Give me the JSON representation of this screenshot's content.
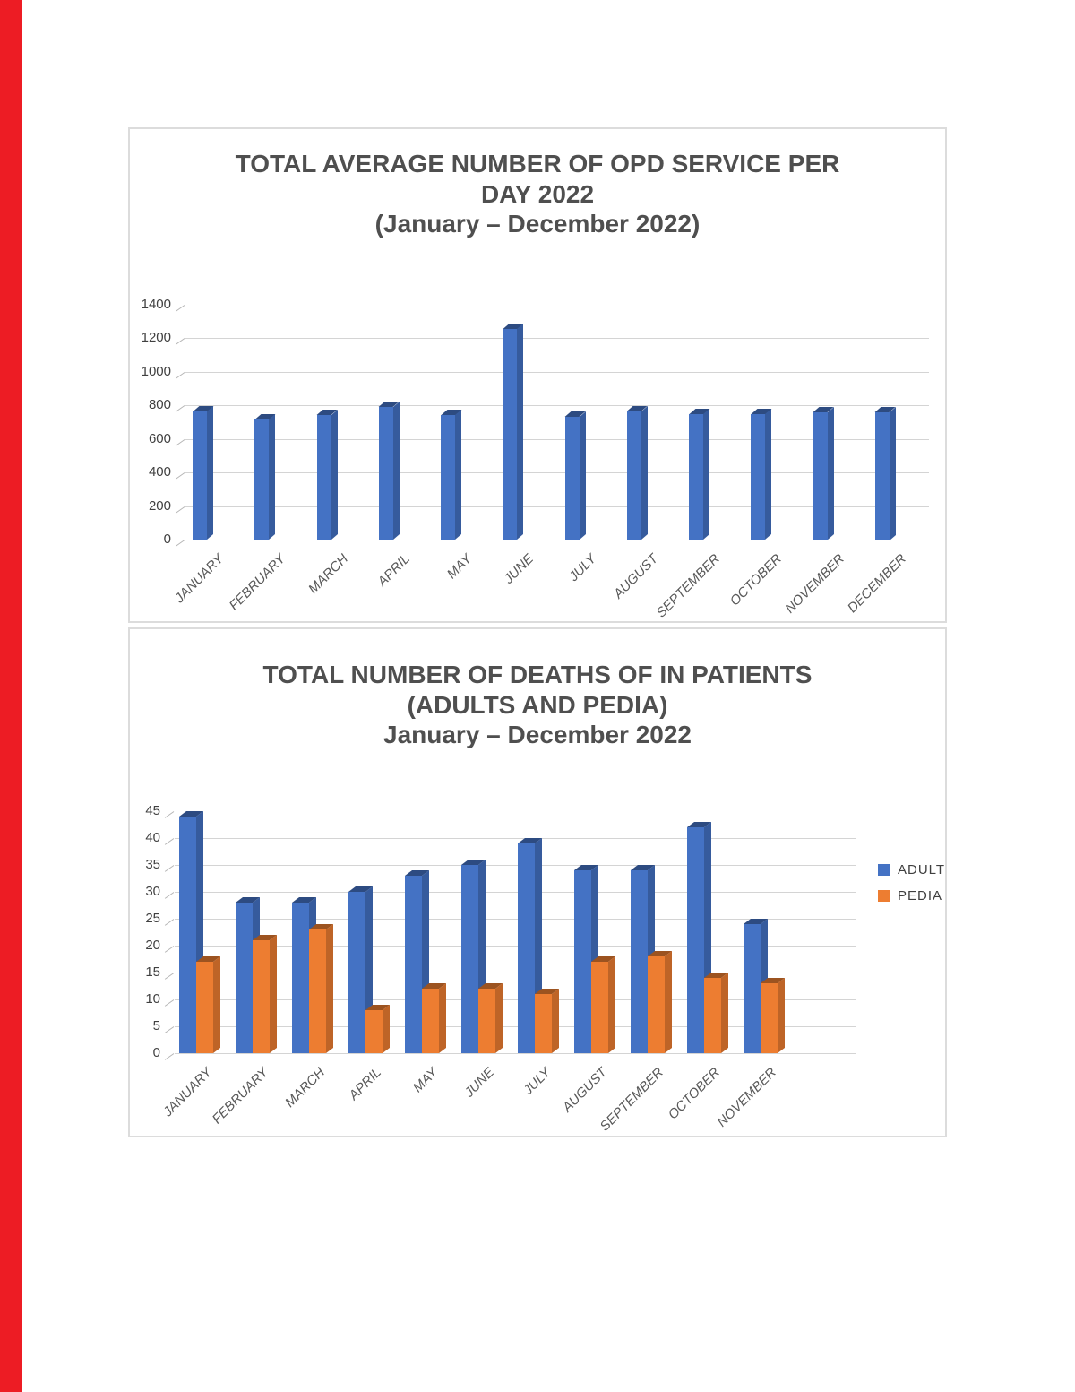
{
  "page": {
    "background": "#ffffff",
    "edge_strip_color": "#ed1c24"
  },
  "charts": [
    {
      "id": "opd",
      "title_lines": [
        "TOTAL AVERAGE NUMBER OF OPD SERVICE PER",
        "DAY 2022",
        "(January – December 2022)"
      ],
      "chart_data": {
        "type": "bar",
        "title": "TOTAL AVERAGE NUMBER OF OPD SERVICE PER DAY 2022 (January – December 2022)",
        "categories": [
          "JANUARY",
          "FEBRUARY",
          "MARCH",
          "APRIL",
          "MAY",
          "JUNE",
          "JULY",
          "AUGUST",
          "SEPTEMBER",
          "OCTOBER",
          "NOVEMBER",
          "DECEMBER"
        ],
        "series": [
          {
            "name": "OPD",
            "color": "#4472c4",
            "values": [
              765,
              715,
              740,
              790,
              740,
              1255,
              730,
              765,
              745,
              745,
              755,
              760
            ]
          }
        ],
        "xlabel": "",
        "ylabel": "",
        "ylim": [
          0,
          1400
        ],
        "ytick_step": 200,
        "grid": true,
        "style": "3d-column",
        "legend": null
      }
    },
    {
      "id": "deaths",
      "title_lines": [
        "TOTAL NUMBER OF DEATHS OF IN PATIENTS",
        "(ADULTS AND PEDIA)",
        "January – December 2022"
      ],
      "chart_data": {
        "type": "bar",
        "title": "TOTAL NUMBER OF DEATHS OF IN PATIENTS (ADULTS AND PEDIA) January – December 2022",
        "categories": [
          "JANUARY",
          "FEBRUARY",
          "MARCH",
          "APRIL",
          "MAY",
          "JUNE",
          "JULY",
          "AUGUST",
          "SEPTEMBER",
          "OCTOBER",
          "NOVEMBER"
        ],
        "series": [
          {
            "name": "ADULT",
            "color": "#4472c4",
            "values": [
              44,
              28,
              28,
              30,
              33,
              35,
              39,
              34,
              34,
              42,
              24
            ]
          },
          {
            "name": "PEDIA",
            "color": "#ed7d31",
            "values": [
              17,
              21,
              23,
              8,
              12,
              12,
              11,
              17,
              18,
              14,
              13
            ]
          }
        ],
        "xlabel": "",
        "ylabel": "",
        "ylim": [
          0,
          45
        ],
        "ytick_step": 5,
        "grid": true,
        "style": "3d-column",
        "legend": {
          "entries": [
            "ADULT",
            "PEDIA"
          ],
          "position": "right"
        }
      }
    }
  ]
}
